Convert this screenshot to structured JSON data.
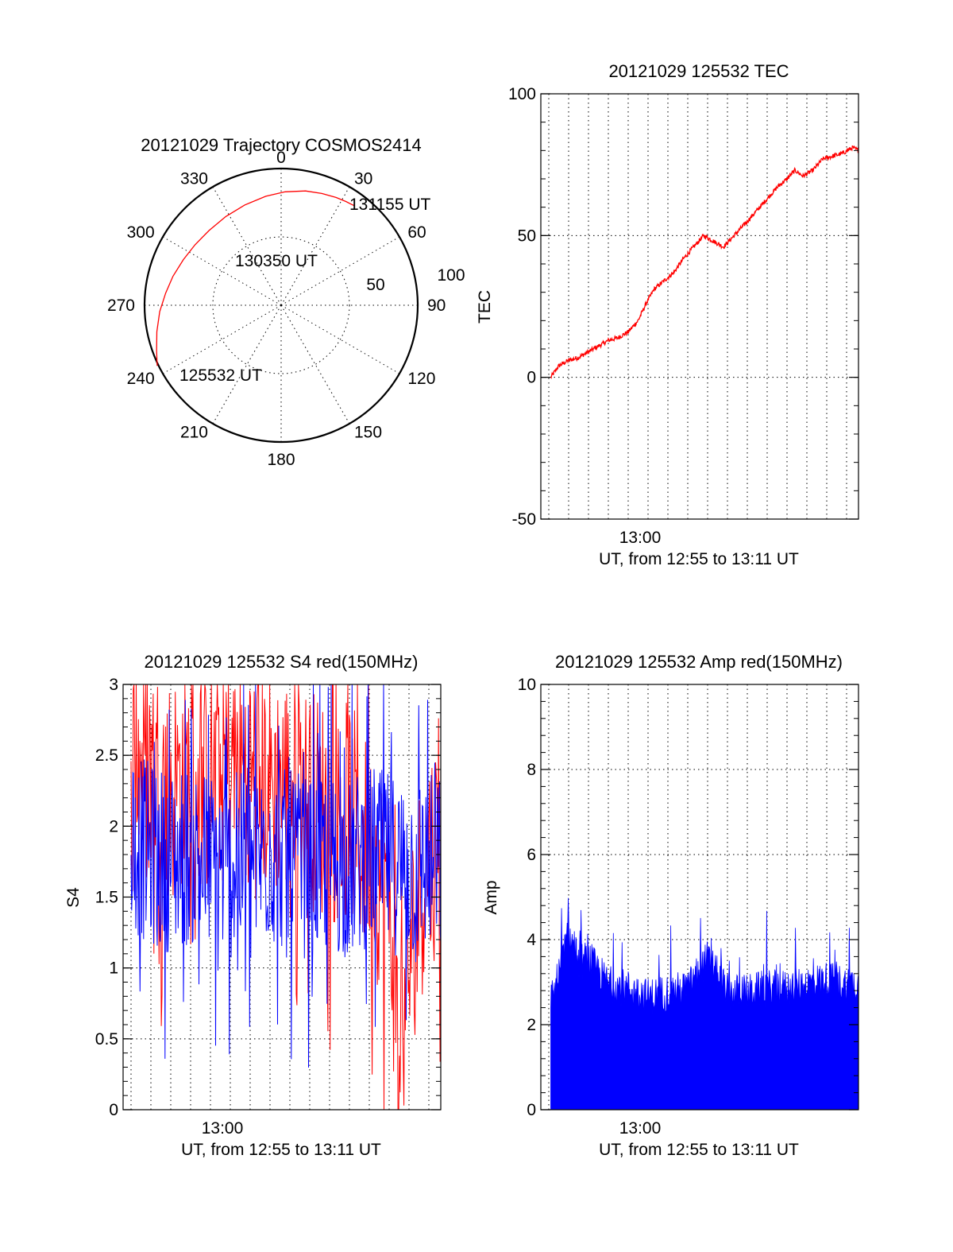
{
  "colors": {
    "red": "#ff0000",
    "blue": "#0000ff",
    "axes": "#000000"
  },
  "chart_data": [
    {
      "type": "scatter",
      "projection": "polar",
      "title": "20121029 Trajectory COSMOS2414",
      "azimuth_ticks": [
        "0",
        "30",
        "60",
        "90",
        "120",
        "150",
        "180",
        "210",
        "240",
        "270",
        "300",
        "330"
      ],
      "radius_ticks": [
        "50",
        "100"
      ],
      "start_label": "125532 UT",
      "mid_label": "130350 UT",
      "end_label": "131155 UT",
      "series": [
        {
          "color": "#ff0000",
          "azimuth_deg": [
            244,
            250,
            258,
            267,
            276,
            285,
            295,
            305,
            316,
            328,
            340,
            352,
            2,
            12,
            20,
            27,
            32,
            35,
            36.5
          ],
          "radius": [
            101,
            97,
            93,
            89,
            85,
            82,
            79,
            77,
            76,
            76.5,
            78,
            80.5,
            83,
            85.5,
            87,
            88.5,
            89.5,
            90,
            90.5
          ]
        }
      ]
    },
    {
      "type": "line",
      "title": "20121029 125532 TEC",
      "xlabel": "UT, from 12:55 to 13:11 UT",
      "ylabel": "TEC",
      "x_ticks": [
        "13:00"
      ],
      "y_ticks": [
        "-50",
        "0",
        "50",
        "100"
      ],
      "xlim_minutes": [
        12.6,
        28.6
      ],
      "ylim": [
        -50,
        100
      ],
      "series": [
        {
          "color": "#ff0000",
          "x_minutes": [
            13.1,
            13.5,
            14.0,
            14.5,
            15.0,
            15.5,
            16.0,
            16.5,
            17.0,
            17.5,
            17.9,
            18.3,
            18.8,
            19.3,
            19.8,
            20.3,
            20.8,
            21.3,
            21.8,
            22.2,
            22.6,
            23.0,
            23.5,
            24.0,
            24.5,
            25.0,
            25.4,
            25.8,
            26.3,
            26.8,
            27.3,
            27.8,
            28.3,
            28.6
          ],
          "values": [
            0,
            4,
            6,
            7,
            9,
            11,
            13,
            14,
            16,
            20,
            26,
            31,
            34,
            37,
            42,
            46,
            50,
            48,
            46,
            49,
            52,
            55,
            59,
            63,
            67,
            70,
            73,
            71,
            73,
            77,
            78,
            79,
            81,
            80
          ]
        }
      ]
    },
    {
      "type": "line",
      "title": "20121029 125532 S4 red(150MHz)",
      "xlabel": "UT, from 12:55 to 13:11 UT",
      "ylabel": "S4",
      "x_ticks": [
        "13:00"
      ],
      "y_ticks": [
        "0",
        "0.5",
        "1",
        "1.5",
        "2",
        "2.5",
        "3"
      ],
      "xlim_minutes": [
        12.6,
        28.6
      ],
      "ylim": [
        0,
        3
      ],
      "series": [
        {
          "color": "#ff0000",
          "x_minutes": [
            13.0,
            14.0,
            15.0,
            16.0,
            17.0,
            18.0,
            19.0,
            20.0,
            21.0,
            22.0,
            23.0,
            24.0,
            25.0,
            26.0,
            26.5,
            27.0,
            27.5,
            28.0,
            28.6
          ],
          "values": [
            2.5,
            2.4,
            2.3,
            2.35,
            2.3,
            2.4,
            2.4,
            2.3,
            2.3,
            2.2,
            2.1,
            2.1,
            1.8,
            1.5,
            0.45,
            1.0,
            1.5,
            1.8,
            1.9
          ]
        },
        {
          "color": "#0000ff",
          "x_minutes": [
            13.0,
            14.0,
            15.0,
            16.0,
            17.0,
            18.0,
            19.0,
            20.0,
            21.0,
            22.0,
            23.0,
            24.0,
            25.0,
            26.0,
            27.0,
            28.0,
            28.6
          ],
          "values": [
            1.9,
            1.8,
            1.75,
            1.8,
            1.75,
            1.7,
            1.75,
            1.8,
            1.75,
            1.7,
            1.75,
            1.7,
            1.8,
            1.75,
            1.7,
            1.75,
            1.7
          ]
        }
      ]
    },
    {
      "type": "area",
      "title": "20121029 125532 Amp red(150MHz)",
      "xlabel": "UT, from 12:55 to 13:11 UT",
      "ylabel": "Amp",
      "x_ticks": [
        "13:00"
      ],
      "y_ticks": [
        "0",
        "2",
        "4",
        "6",
        "8",
        "10"
      ],
      "xlim_minutes": [
        12.6,
        28.6
      ],
      "ylim": [
        0,
        10
      ],
      "series": [
        {
          "color": "#0000ff",
          "x_minutes": [
            13.1,
            13.5,
            14.0,
            14.5,
            15.0,
            15.5,
            16.0,
            17.0,
            18.0,
            19.0,
            20.0,
            21.0,
            22.0,
            23.0,
            24.0,
            25.0,
            26.0,
            27.0,
            28.0,
            28.6
          ],
          "values": [
            2.6,
            3.2,
            4.2,
            3.5,
            3.6,
            3.3,
            3.0,
            2.9,
            2.7,
            2.8,
            2.9,
            3.6,
            2.8,
            2.8,
            2.9,
            2.9,
            3.0,
            3.1,
            3.0,
            3.0
          ]
        }
      ]
    }
  ]
}
